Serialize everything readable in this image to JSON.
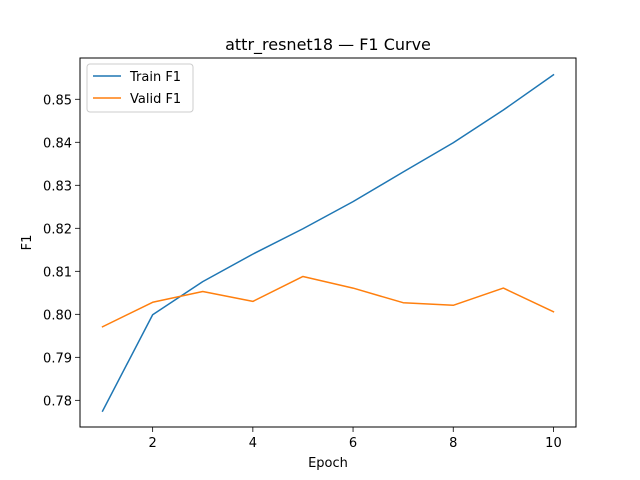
{
  "chart_data": {
    "type": "line",
    "title": "attr_resnet18 — F1 Curve",
    "xlabel": "Epoch",
    "ylabel": "F1",
    "x": [
      1,
      2,
      3,
      4,
      5,
      6,
      7,
      8,
      9,
      10
    ],
    "xlim": [
      0.55,
      10.45
    ],
    "ylim": [
      0.7738,
      0.8596
    ],
    "xticks": [
      2,
      4,
      6,
      8,
      10
    ],
    "xtick_labels": [
      "2",
      "4",
      "6",
      "8",
      "10"
    ],
    "yticks": [
      0.78,
      0.79,
      0.8,
      0.81,
      0.82,
      0.83,
      0.84,
      0.85
    ],
    "ytick_labels": [
      "0.78",
      "0.79",
      "0.80",
      "0.81",
      "0.82",
      "0.83",
      "0.84",
      "0.85"
    ],
    "grid": false,
    "legend_position": "top-left",
    "series": [
      {
        "name": "Train F1",
        "color": "#1f77b4",
        "values": [
          0.7775,
          0.7999,
          0.8076,
          0.814,
          0.8199,
          0.8262,
          0.8331,
          0.8399,
          0.8475,
          0.8557
        ]
      },
      {
        "name": "Valid F1",
        "color": "#ff7f0e",
        "values": [
          0.7971,
          0.8028,
          0.8053,
          0.803,
          0.8088,
          0.8061,
          0.8027,
          0.8021,
          0.8061,
          0.8006
        ]
      }
    ]
  }
}
